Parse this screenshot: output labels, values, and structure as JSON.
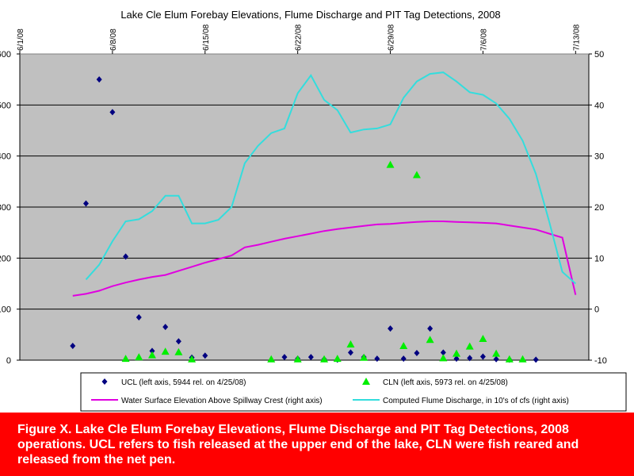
{
  "chart_data": {
    "type": "scatter",
    "title": "Lake Cle Elum Forebay Elevations, Flume Discharge and PIT Tag Detections, 2008",
    "x_ticks": [
      "6/1/08",
      "6/8/08",
      "6/15/08",
      "6/22/08",
      "6/29/08",
      "7/6/08",
      "7/13/08"
    ],
    "left_axis_ticks": [
      "600",
      "500",
      "400",
      "300",
      "200",
      "100",
      "0"
    ],
    "right_axis_ticks": [
      "50",
      "40",
      "30",
      "20",
      "10",
      "0",
      "-10"
    ],
    "left_ylim": [
      0,
      600
    ],
    "right_ylim": [
      -10,
      50
    ],
    "grid": true,
    "legend_position": "bottom",
    "series": [
      {
        "name": "UCL (left axis, 5944 rel. on 4/25/08)",
        "kind": "scatter",
        "marker": "diamond",
        "axis": "left",
        "color": "#000080",
        "points": [
          [
            "2008-06-05",
            28
          ],
          [
            "2008-06-06",
            307
          ],
          [
            "2008-06-07",
            550
          ],
          [
            "2008-06-08",
            486
          ],
          [
            "2008-06-09",
            203
          ],
          [
            "2008-06-10",
            84
          ],
          [
            "2008-06-11",
            18
          ],
          [
            "2008-06-12",
            65
          ],
          [
            "2008-06-13",
            37
          ],
          [
            "2008-06-14",
            5
          ],
          [
            "2008-06-15",
            9
          ],
          [
            "2008-06-21",
            6
          ],
          [
            "2008-06-22",
            3
          ],
          [
            "2008-06-23",
            6
          ],
          [
            "2008-06-24",
            2
          ],
          [
            "2008-06-25",
            1
          ],
          [
            "2008-06-26",
            15
          ],
          [
            "2008-06-27",
            6
          ],
          [
            "2008-06-28",
            3
          ],
          [
            "2008-06-29",
            62
          ],
          [
            "2008-06-30",
            3
          ],
          [
            "2008-07-01",
            14
          ],
          [
            "2008-07-02",
            62
          ],
          [
            "2008-07-03",
            15
          ],
          [
            "2008-07-04",
            3
          ],
          [
            "2008-07-05",
            4
          ],
          [
            "2008-07-06",
            7
          ],
          [
            "2008-07-07",
            2
          ],
          [
            "2008-07-08",
            1
          ],
          [
            "2008-07-10",
            1
          ]
        ]
      },
      {
        "name": "CLN (left axis, 5973 rel. on 4/25/08)",
        "kind": "scatter",
        "marker": "triangle",
        "axis": "left",
        "color": "#00ee00",
        "points": [
          [
            "2008-06-09",
            3
          ],
          [
            "2008-06-10",
            6
          ],
          [
            "2008-06-11",
            10
          ],
          [
            "2008-06-12",
            17
          ],
          [
            "2008-06-13",
            16
          ],
          [
            "2008-06-14",
            2
          ],
          [
            "2008-06-20",
            2
          ],
          [
            "2008-06-22",
            2
          ],
          [
            "2008-06-24",
            2
          ],
          [
            "2008-06-25",
            3
          ],
          [
            "2008-06-26",
            31
          ],
          [
            "2008-06-27",
            5
          ],
          [
            "2008-06-29",
            383
          ],
          [
            "2008-06-30",
            28
          ],
          [
            "2008-07-01",
            363
          ],
          [
            "2008-07-02",
            40
          ],
          [
            "2008-07-03",
            4
          ],
          [
            "2008-07-04",
            13
          ],
          [
            "2008-07-05",
            27
          ],
          [
            "2008-07-06",
            42
          ],
          [
            "2008-07-07",
            13
          ],
          [
            "2008-07-08",
            2
          ],
          [
            "2008-07-09",
            2
          ]
        ]
      },
      {
        "name": "Water Surface Elevation Above Spillway Crest (right axis)",
        "kind": "line",
        "axis": "right",
        "color": "#e000e0",
        "points": [
          [
            "2008-06-05",
            2.6
          ],
          [
            "2008-06-06",
            3.0
          ],
          [
            "2008-06-07",
            3.6
          ],
          [
            "2008-06-08",
            4.5
          ],
          [
            "2008-06-09",
            5.2
          ],
          [
            "2008-06-10",
            5.8
          ],
          [
            "2008-06-11",
            6.3
          ],
          [
            "2008-06-12",
            6.7
          ],
          [
            "2008-06-13",
            7.5
          ],
          [
            "2008-06-14",
            8.3
          ],
          [
            "2008-06-15",
            9.1
          ],
          [
            "2008-06-16",
            9.8
          ],
          [
            "2008-06-17",
            10.5
          ],
          [
            "2008-06-18",
            12.1
          ],
          [
            "2008-06-19",
            12.6
          ],
          [
            "2008-06-20",
            13.2
          ],
          [
            "2008-06-21",
            13.8
          ],
          [
            "2008-06-22",
            14.3
          ],
          [
            "2008-06-23",
            14.8
          ],
          [
            "2008-06-24",
            15.3
          ],
          [
            "2008-06-25",
            15.7
          ],
          [
            "2008-06-26",
            16.0
          ],
          [
            "2008-06-27",
            16.3
          ],
          [
            "2008-06-28",
            16.6
          ],
          [
            "2008-06-29",
            16.7
          ],
          [
            "2008-06-30",
            16.9
          ],
          [
            "2008-07-01",
            17.1
          ],
          [
            "2008-07-02",
            17.2
          ],
          [
            "2008-07-03",
            17.2
          ],
          [
            "2008-07-04",
            17.1
          ],
          [
            "2008-07-05",
            17.0
          ],
          [
            "2008-07-06",
            16.9
          ],
          [
            "2008-07-07",
            16.8
          ],
          [
            "2008-07-08",
            16.4
          ],
          [
            "2008-07-09",
            16.0
          ],
          [
            "2008-07-10",
            15.6
          ],
          [
            "2008-07-11",
            14.8
          ],
          [
            "2008-07-12",
            14.0
          ],
          [
            "2008-07-13",
            2.8
          ]
        ]
      },
      {
        "name": "Computed Flume Discharge, in 10's of cfs (right axis)",
        "kind": "line",
        "axis": "right",
        "color": "#33dddd",
        "points": [
          [
            "2008-06-06",
            5.8
          ],
          [
            "2008-06-07",
            8.7
          ],
          [
            "2008-06-08",
            13.3
          ],
          [
            "2008-06-09",
            17.2
          ],
          [
            "2008-06-10",
            17.6
          ],
          [
            "2008-06-11",
            19.2
          ],
          [
            "2008-06-12",
            22.2
          ],
          [
            "2008-06-13",
            22.2
          ],
          [
            "2008-06-14",
            16.8
          ],
          [
            "2008-06-15",
            16.8
          ],
          [
            "2008-06-16",
            17.5
          ],
          [
            "2008-06-17",
            20.0
          ],
          [
            "2008-06-18",
            28.6
          ],
          [
            "2008-06-19",
            32.0
          ],
          [
            "2008-06-20",
            34.5
          ],
          [
            "2008-06-21",
            35.4
          ],
          [
            "2008-06-22",
            42.3
          ],
          [
            "2008-06-23",
            45.8
          ],
          [
            "2008-06-24",
            41.0
          ],
          [
            "2008-06-25",
            39.0
          ],
          [
            "2008-06-26",
            34.6
          ],
          [
            "2008-06-27",
            35.2
          ],
          [
            "2008-06-28",
            35.4
          ],
          [
            "2008-06-29",
            36.2
          ],
          [
            "2008-06-30",
            41.4
          ],
          [
            "2008-07-01",
            44.6
          ],
          [
            "2008-07-02",
            46.1
          ],
          [
            "2008-07-03",
            46.4
          ],
          [
            "2008-07-04",
            44.6
          ],
          [
            "2008-07-05",
            42.5
          ],
          [
            "2008-07-06",
            42.0
          ],
          [
            "2008-07-07",
            40.3
          ],
          [
            "2008-07-08",
            37.3
          ],
          [
            "2008-07-09",
            33.0
          ],
          [
            "2008-07-10",
            26.5
          ],
          [
            "2008-07-11",
            17.2
          ],
          [
            "2008-07-12",
            7.3
          ],
          [
            "2008-07-13",
            5.0
          ]
        ]
      }
    ]
  },
  "caption": "Figure X.  Lake Cle Elum Forebay Elevations, Flume Discharge and PIT Tag Detections, 2008 operations.  UCL refers to fish released at the upper end of the lake, CLN were fish reared and released from the net pen."
}
